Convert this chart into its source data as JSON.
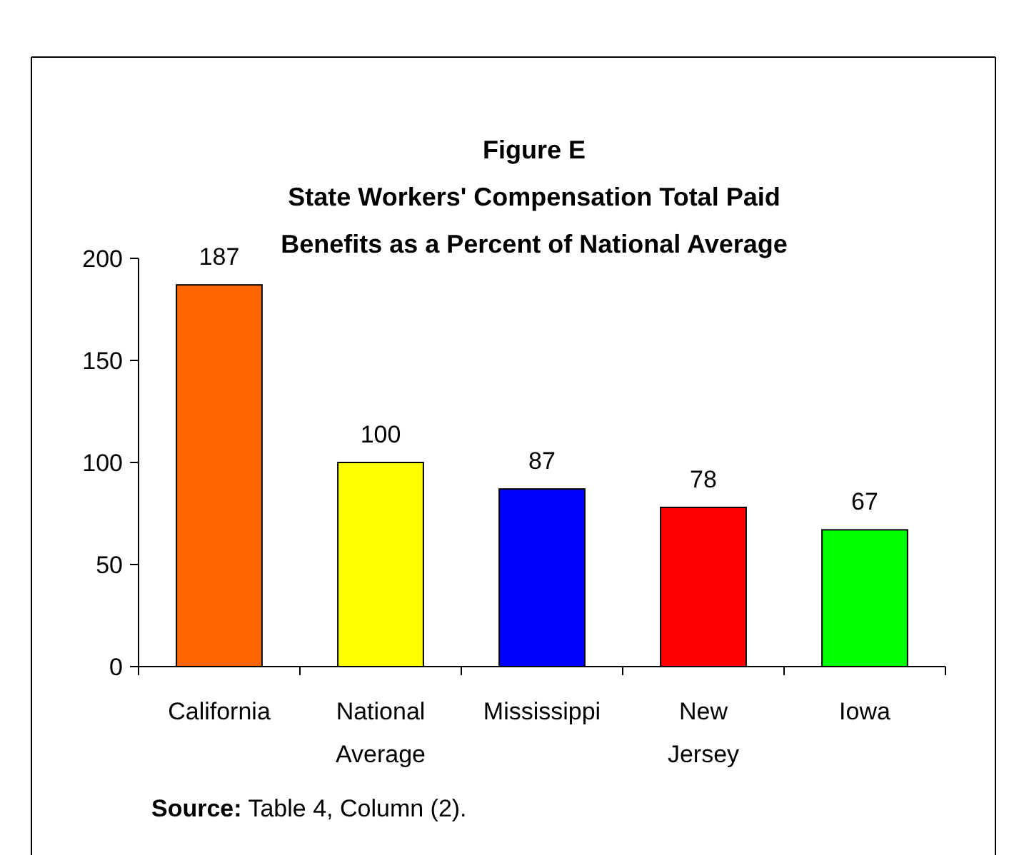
{
  "chart_data": {
    "type": "bar",
    "title": "Figure E\nState Workers' Compensation Total Paid\nBenefits as a Percent of National Average",
    "categories": [
      "California",
      "National Average",
      "Mississippi",
      "New Jersey",
      "Iowa"
    ],
    "values": [
      187,
      100,
      87,
      78,
      67
    ],
    "colors": [
      "#ff6600",
      "#ffff00",
      "#0000ff",
      "#ff0000",
      "#00ff00"
    ],
    "ylim": [
      0,
      200
    ],
    "yticks": [
      0,
      50,
      100,
      150,
      200
    ],
    "grid": false,
    "data_labels": true,
    "annotations": [
      "Source: Table 4, Column (2)."
    ]
  }
}
